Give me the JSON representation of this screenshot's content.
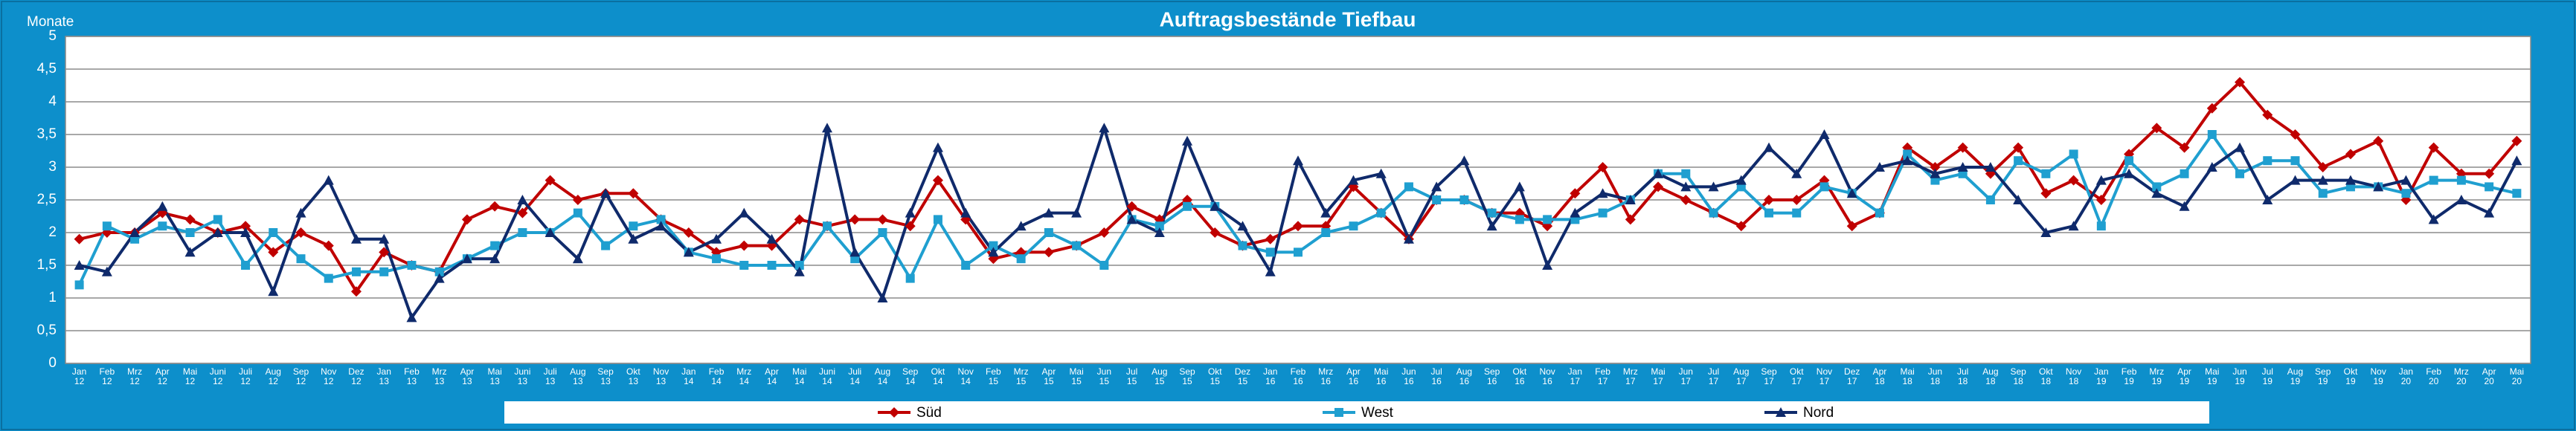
{
  "chart_data": {
    "type": "line",
    "title": "Auftragsbestände Tiefbau",
    "y_label": "Monate",
    "categories": [
      "Jan 12",
      "Feb 12",
      "Mrz 12",
      "Apr 12",
      "Mai 12",
      "Juni 12",
      "Juli 12",
      "Aug 12",
      "Sep 12",
      "Nov 12",
      "Dez 12",
      "Jan 13",
      "Feb 13",
      "Mrz 13",
      "Apr 13",
      "Mai 13",
      "Juni 13",
      "Juli 13",
      "Aug 13",
      "Sep 13",
      "Okt 13",
      "Nov 13",
      "Jan 14",
      "Feb 14",
      "Mrz 14",
      "Apr 14",
      "Mai 14",
      "Juni 14",
      "Juli 14",
      "Aug 14",
      "Sep 14",
      "Okt 14",
      "Nov 14",
      "Feb 15",
      "Mrz 15",
      "Apr 15",
      "Mai 15",
      "Jun 15",
      "Jul 15",
      "Aug 15",
      "Sep 15",
      "Okt 15",
      "Dez 15",
      "Jan 16",
      "Feb 16",
      "Mrz 16",
      "Apr 16",
      "Mai 16",
      "Jun 16",
      "Jul 16",
      "Aug 16",
      "Sep 16",
      "Okt 16",
      "Nov 16",
      "Jan 17",
      "Feb 17",
      "Mrz 17",
      "Mai 17",
      "Jun 17",
      "Jul 17",
      "Aug 17",
      "Sep 17",
      "Okt 17",
      "Nov 17",
      "Dez 17",
      "Apr 18",
      "Mai 18",
      "Jun 18",
      "Jul 18",
      "Aug 18",
      "Sep 18",
      "Okt 18",
      "Nov 18",
      "Jan 19",
      "Feb 19",
      "Mrz 19",
      "Apr 19",
      "Mai 19",
      "Jun 19",
      "Jul 19",
      "Aug 19",
      "Sep 19",
      "Okt 19",
      "Nov 19",
      "Jan 20",
      "Feb 20",
      "Mrz 20",
      "Apr 20",
      "Mai 20"
    ],
    "series": [
      {
        "name": "Süd",
        "color": "#c00000",
        "marker": "diamond",
        "values": [
          1.9,
          2.0,
          2.0,
          2.3,
          2.2,
          2.0,
          2.1,
          1.7,
          2.0,
          1.8,
          1.1,
          1.7,
          1.5,
          1.4,
          2.2,
          2.4,
          2.3,
          2.8,
          2.5,
          2.6,
          2.6,
          2.2,
          2.0,
          1.7,
          1.8,
          1.8,
          2.2,
          2.1,
          2.2,
          2.2,
          2.1,
          2.8,
          2.2,
          1.6,
          1.7,
          1.7,
          1.8,
          2.0,
          2.4,
          2.2,
          2.5,
          2.0,
          1.8,
          1.9,
          2.1,
          2.1,
          2.7,
          2.3,
          1.9,
          2.5,
          2.5,
          2.3,
          2.3,
          2.1,
          2.6,
          3.0,
          2.2,
          2.7,
          2.5,
          2.3,
          2.1,
          2.5,
          2.5,
          2.8,
          2.1,
          2.3,
          3.3,
          3.0,
          3.3,
          2.9,
          3.3,
          2.6,
          2.8,
          2.5,
          3.2,
          3.6,
          3.3,
          3.9,
          4.3,
          3.8,
          3.5,
          3.0,
          3.2,
          3.4,
          2.5,
          3.3,
          2.9,
          2.9,
          3.4
        ]
      },
      {
        "name": "West",
        "color": "#1f9fd0",
        "marker": "square",
        "values": [
          1.2,
          2.1,
          1.9,
          2.1,
          2.0,
          2.2,
          1.5,
          2.0,
          1.6,
          1.3,
          1.4,
          1.4,
          1.5,
          1.4,
          1.6,
          1.8,
          2.0,
          2.0,
          2.3,
          1.8,
          2.1,
          2.2,
          1.7,
          1.6,
          1.5,
          1.5,
          1.5,
          2.1,
          1.6,
          2.0,
          1.3,
          2.2,
          1.5,
          1.8,
          1.6,
          2.0,
          1.8,
          1.5,
          2.2,
          2.1,
          2.4,
          2.4,
          1.8,
          1.7,
          1.7,
          2.0,
          2.1,
          2.3,
          2.7,
          2.5,
          2.5,
          2.3,
          2.2,
          2.2,
          2.2,
          2.3,
          2.5,
          2.9,
          2.9,
          2.3,
          2.7,
          2.3,
          2.3,
          2.7,
          2.6,
          2.3,
          3.2,
          2.8,
          2.9,
          2.5,
          3.1,
          2.9,
          3.2,
          2.1,
          3.1,
          2.7,
          2.9,
          3.5,
          2.9,
          3.1,
          3.1,
          2.6,
          2.7,
          2.7,
          2.6,
          2.8,
          2.8,
          2.7,
          2.6
        ]
      },
      {
        "name": "Nord",
        "color": "#0f2a6b",
        "marker": "triangle",
        "values": [
          1.5,
          1.4,
          2.0,
          2.4,
          1.7,
          2.0,
          2.0,
          1.1,
          2.3,
          2.8,
          1.9,
          1.9,
          0.7,
          1.3,
          1.6,
          1.6,
          2.5,
          2.0,
          1.6,
          2.6,
          1.9,
          2.1,
          1.7,
          1.9,
          2.3,
          1.9,
          1.4,
          3.6,
          1.7,
          1.0,
          2.3,
          3.3,
          2.3,
          1.7,
          2.1,
          2.3,
          2.3,
          3.6,
          2.2,
          2.0,
          3.4,
          2.4,
          2.1,
          1.4,
          3.1,
          2.3,
          2.8,
          2.9,
          1.9,
          2.7,
          3.1,
          2.1,
          2.7,
          1.5,
          2.3,
          2.6,
          2.5,
          2.9,
          2.7,
          2.7,
          2.8,
          3.3,
          2.9,
          3.5,
          2.6,
          3.0,
          3.1,
          2.9,
          3.0,
          3.0,
          2.5,
          2.0,
          2.1,
          2.8,
          2.9,
          2.6,
          2.4,
          3.0,
          3.3,
          2.5,
          2.8,
          2.8,
          2.8,
          2.7,
          2.8,
          2.2,
          2.5,
          2.3,
          3.1
        ]
      }
    ],
    "ylim": [
      0,
      5
    ],
    "yticks": [
      0,
      {
        "value": 0.5,
        "label": "0,5"
      },
      1,
      {
        "value": 1.5,
        "label": "1,5"
      },
      2,
      {
        "value": 2.5,
        "label": "2,5"
      },
      3,
      {
        "value": 3.5,
        "label": "3,5"
      },
      4,
      {
        "value": 4.5,
        "label": "4,5"
      },
      5
    ],
    "grid": true,
    "legend": "bottom"
  }
}
